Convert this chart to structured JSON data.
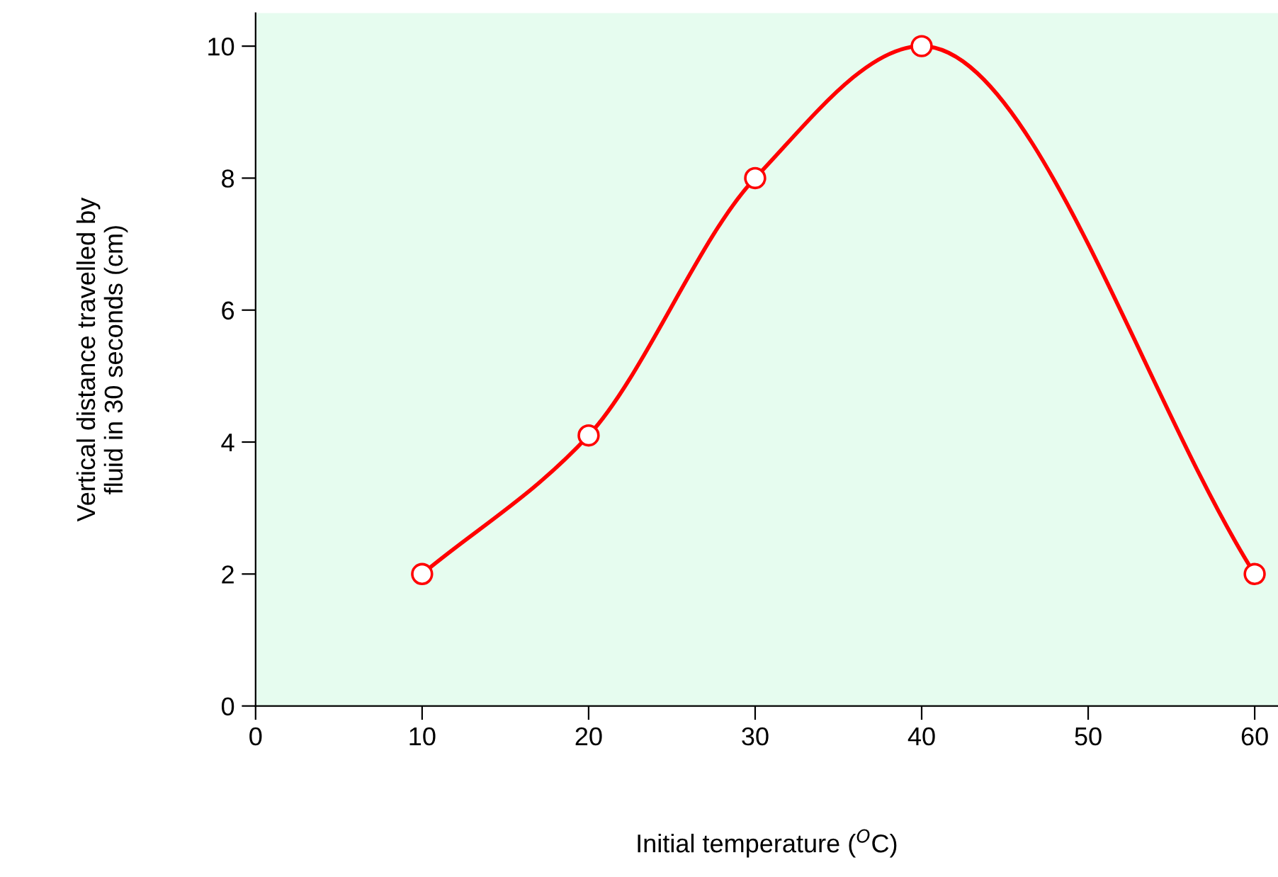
{
  "chart_data": {
    "type": "line",
    "xlabel": "Initial temperature ($^{O}$C)",
    "ylabel": "Vertical distance travelled by\nfluid in 30 seconds (cm)",
    "series": [
      {
        "color": "#ff0000",
        "x": [
          10,
          20,
          30,
          40,
          60
        ],
        "values": [
          2,
          4.1,
          8,
          10,
          2
        ]
      }
    ],
    "xlim": [
      0,
      61.4
    ],
    "ylim": [
      0,
      10.5
    ],
    "xticks": [
      0,
      10,
      20,
      30,
      40,
      50,
      60
    ],
    "yticks": [
      0,
      2,
      4,
      6,
      8,
      10
    ],
    "marker": "circle",
    "line_style": "solid",
    "grid": false
  }
}
